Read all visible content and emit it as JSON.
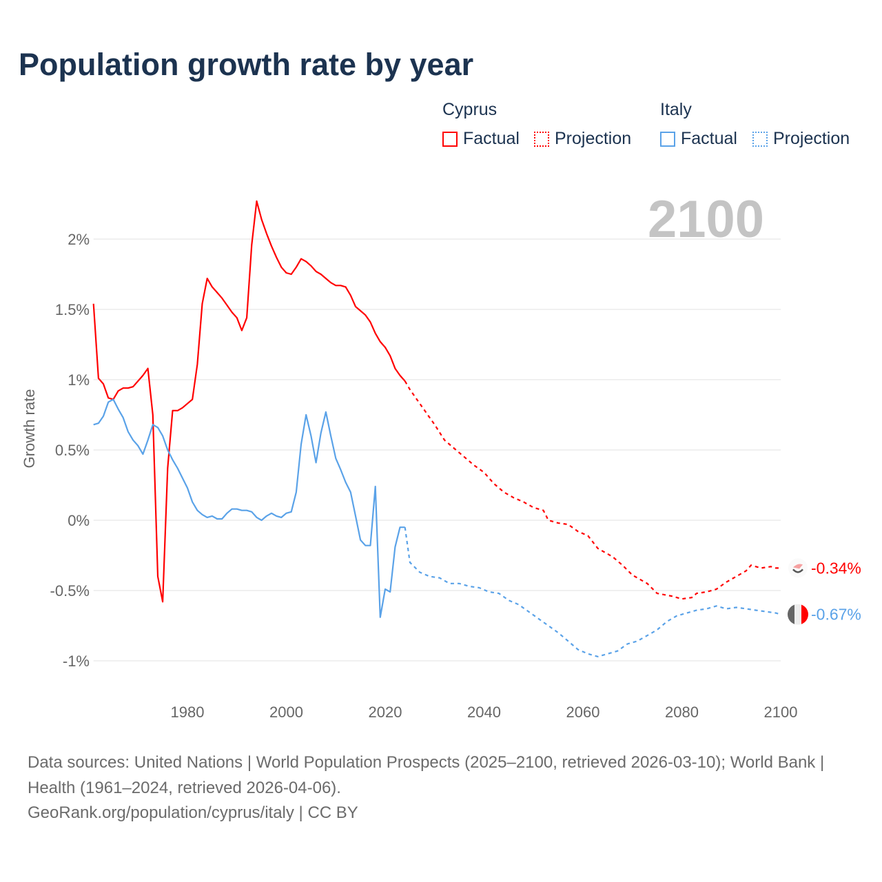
{
  "title": "Population growth rate by year",
  "current_year": "2100",
  "legend": {
    "groups": [
      {
        "name": "Cyprus",
        "color": "#ff0000",
        "factual": "Factual",
        "projection": "Projection"
      },
      {
        "name": "Italy",
        "color": "#5aa2e8",
        "factual": "Factual",
        "projection": "Projection"
      }
    ]
  },
  "footer": {
    "sources": "Data sources: United Nations | World Population Prospects (2025–2100, retrieved 2026-03-10); World Bank | Health (1961–2024, retrieved 2026-04-06).",
    "credit": "GeoRank.org/population/cyprus/italy | CC BY"
  },
  "chart_data": {
    "type": "line",
    "title": "Population growth rate by year",
    "xlabel": "",
    "ylabel": "Growth rate",
    "xlim": [
      1961,
      2100
    ],
    "ylim": [
      -1.2,
      2.35
    ],
    "x_ticks": [
      1980,
      2000,
      2020,
      2040,
      2060,
      2080,
      2100
    ],
    "x_tick_labels": [
      "1980",
      "2000",
      "2020",
      "2040",
      "2060",
      "2080",
      "2100"
    ],
    "y_ticks": [
      2,
      1.5,
      1,
      0.5,
      0,
      -0.5,
      -1
    ],
    "y_tick_labels": [
      "2%",
      "1.5%",
      "1%",
      "0.5%",
      "0%",
      "-0.5%",
      "-1%"
    ],
    "grid": true,
    "legend_position": "top-right",
    "series": [
      {
        "name": "Cyprus",
        "color": "#ff0000",
        "end_label": "-0.34%",
        "factual": [
          [
            1961,
            1.54
          ],
          [
            1962,
            1.01
          ],
          [
            1963,
            0.97
          ],
          [
            1964,
            0.87
          ],
          [
            1965,
            0.86
          ],
          [
            1966,
            0.92
          ],
          [
            1967,
            0.94
          ],
          [
            1968,
            0.94
          ],
          [
            1969,
            0.95
          ],
          [
            1970,
            0.99
          ],
          [
            1971,
            1.03
          ],
          [
            1972,
            1.08
          ],
          [
            1973,
            0.75
          ],
          [
            1974,
            -0.4
          ],
          [
            1975,
            -0.58
          ],
          [
            1976,
            0.37
          ],
          [
            1977,
            0.78
          ],
          [
            1978,
            0.78
          ],
          [
            1979,
            0.8
          ],
          [
            1980,
            0.83
          ],
          [
            1981,
            0.86
          ],
          [
            1982,
            1.11
          ],
          [
            1983,
            1.54
          ],
          [
            1984,
            1.72
          ],
          [
            1985,
            1.66
          ],
          [
            1986,
            1.62
          ],
          [
            1987,
            1.58
          ],
          [
            1988,
            1.53
          ],
          [
            1989,
            1.48
          ],
          [
            1990,
            1.44
          ],
          [
            1991,
            1.35
          ],
          [
            1992,
            1.44
          ],
          [
            1993,
            1.96
          ],
          [
            1994,
            2.27
          ],
          [
            1995,
            2.14
          ],
          [
            1996,
            2.04
          ],
          [
            1997,
            1.95
          ],
          [
            1998,
            1.87
          ],
          [
            1999,
            1.8
          ],
          [
            2000,
            1.76
          ],
          [
            2001,
            1.75
          ],
          [
            2002,
            1.8
          ],
          [
            2003,
            1.86
          ],
          [
            2004,
            1.84
          ],
          [
            2005,
            1.81
          ],
          [
            2006,
            1.77
          ],
          [
            2007,
            1.75
          ],
          [
            2008,
            1.72
          ],
          [
            2009,
            1.69
          ],
          [
            2010,
            1.67
          ],
          [
            2011,
            1.67
          ],
          [
            2012,
            1.66
          ],
          [
            2013,
            1.6
          ],
          [
            2014,
            1.52
          ],
          [
            2015,
            1.49
          ],
          [
            2016,
            1.46
          ],
          [
            2017,
            1.41
          ],
          [
            2018,
            1.33
          ],
          [
            2019,
            1.27
          ],
          [
            2020,
            1.23
          ],
          [
            2021,
            1.17
          ],
          [
            2022,
            1.08
          ],
          [
            2023,
            1.03
          ],
          [
            2024,
            0.99
          ]
        ],
        "projection": [
          [
            2024,
            0.99
          ],
          [
            2025,
            0.93
          ],
          [
            2027,
            0.83
          ],
          [
            2030,
            0.68
          ],
          [
            2032,
            0.57
          ],
          [
            2035,
            0.48
          ],
          [
            2038,
            0.39
          ],
          [
            2040,
            0.34
          ],
          [
            2042,
            0.26
          ],
          [
            2044,
            0.2
          ],
          [
            2046,
            0.16
          ],
          [
            2048,
            0.13
          ],
          [
            2050,
            0.09
          ],
          [
            2052,
            0.07
          ],
          [
            2053,
            0.0
          ],
          [
            2055,
            -0.02
          ],
          [
            2057,
            -0.03
          ],
          [
            2059,
            -0.08
          ],
          [
            2061,
            -0.11
          ],
          [
            2063,
            -0.2
          ],
          [
            2066,
            -0.26
          ],
          [
            2068,
            -0.32
          ],
          [
            2070,
            -0.39
          ],
          [
            2073,
            -0.45
          ],
          [
            2075,
            -0.52
          ],
          [
            2078,
            -0.54
          ],
          [
            2080,
            -0.56
          ],
          [
            2082,
            -0.55
          ],
          [
            2083,
            -0.52
          ],
          [
            2085,
            -0.51
          ],
          [
            2087,
            -0.49
          ],
          [
            2089,
            -0.44
          ],
          [
            2091,
            -0.4
          ],
          [
            2093,
            -0.36
          ],
          [
            2094,
            -0.32
          ],
          [
            2096,
            -0.34
          ],
          [
            2098,
            -0.33
          ],
          [
            2099,
            -0.34
          ],
          [
            2100,
            -0.34
          ]
        ]
      },
      {
        "name": "Italy",
        "color": "#5aa2e8",
        "end_label": "-0.67%",
        "factual": [
          [
            1961,
            0.68
          ],
          [
            1962,
            0.69
          ],
          [
            1963,
            0.74
          ],
          [
            1964,
            0.84
          ],
          [
            1965,
            0.86
          ],
          [
            1966,
            0.79
          ],
          [
            1967,
            0.73
          ],
          [
            1968,
            0.63
          ],
          [
            1969,
            0.57
          ],
          [
            1970,
            0.53
          ],
          [
            1971,
            0.47
          ],
          [
            1972,
            0.57
          ],
          [
            1973,
            0.68
          ],
          [
            1974,
            0.66
          ],
          [
            1975,
            0.6
          ],
          [
            1976,
            0.5
          ],
          [
            1977,
            0.43
          ],
          [
            1978,
            0.37
          ],
          [
            1979,
            0.3
          ],
          [
            1980,
            0.23
          ],
          [
            1981,
            0.13
          ],
          [
            1982,
            0.07
          ],
          [
            1983,
            0.04
          ],
          [
            1984,
            0.02
          ],
          [
            1985,
            0.03
          ],
          [
            1986,
            0.01
          ],
          [
            1987,
            0.01
          ],
          [
            1988,
            0.05
          ],
          [
            1989,
            0.08
          ],
          [
            1990,
            0.08
          ],
          [
            1991,
            0.07
          ],
          [
            1992,
            0.07
          ],
          [
            1993,
            0.06
          ],
          [
            1994,
            0.02
          ],
          [
            1995,
            0.0
          ],
          [
            1996,
            0.03
          ],
          [
            1997,
            0.05
          ],
          [
            1998,
            0.03
          ],
          [
            1999,
            0.02
          ],
          [
            2000,
            0.05
          ],
          [
            2001,
            0.06
          ],
          [
            2002,
            0.2
          ],
          [
            2003,
            0.54
          ],
          [
            2004,
            0.75
          ],
          [
            2005,
            0.6
          ],
          [
            2006,
            0.41
          ],
          [
            2007,
            0.62
          ],
          [
            2008,
            0.77
          ],
          [
            2009,
            0.6
          ],
          [
            2010,
            0.44
          ],
          [
            2011,
            0.36
          ],
          [
            2012,
            0.27
          ],
          [
            2013,
            0.2
          ],
          [
            2014,
            0.03
          ],
          [
            2015,
            -0.14
          ],
          [
            2016,
            -0.18
          ],
          [
            2017,
            -0.18
          ],
          [
            2018,
            0.24
          ],
          [
            2019,
            -0.69
          ],
          [
            2020,
            -0.49
          ],
          [
            2021,
            -0.51
          ],
          [
            2022,
            -0.19
          ],
          [
            2023,
            -0.05
          ],
          [
            2024,
            -0.05
          ]
        ],
        "projection": [
          [
            2024,
            -0.05
          ],
          [
            2025,
            -0.3
          ],
          [
            2027,
            -0.37
          ],
          [
            2029,
            -0.4
          ],
          [
            2031,
            -0.41
          ],
          [
            2033,
            -0.45
          ],
          [
            2035,
            -0.45
          ],
          [
            2037,
            -0.47
          ],
          [
            2039,
            -0.48
          ],
          [
            2041,
            -0.51
          ],
          [
            2043,
            -0.52
          ],
          [
            2045,
            -0.57
          ],
          [
            2047,
            -0.6
          ],
          [
            2049,
            -0.65
          ],
          [
            2051,
            -0.7
          ],
          [
            2053,
            -0.75
          ],
          [
            2055,
            -0.8
          ],
          [
            2057,
            -0.86
          ],
          [
            2059,
            -0.92
          ],
          [
            2061,
            -0.95
          ],
          [
            2063,
            -0.97
          ],
          [
            2065,
            -0.95
          ],
          [
            2067,
            -0.93
          ],
          [
            2069,
            -0.88
          ],
          [
            2071,
            -0.86
          ],
          [
            2073,
            -0.82
          ],
          [
            2075,
            -0.78
          ],
          [
            2077,
            -0.72
          ],
          [
            2079,
            -0.68
          ],
          [
            2081,
            -0.66
          ],
          [
            2083,
            -0.64
          ],
          [
            2085,
            -0.63
          ],
          [
            2087,
            -0.61
          ],
          [
            2089,
            -0.63
          ],
          [
            2091,
            -0.62
          ],
          [
            2093,
            -0.63
          ],
          [
            2095,
            -0.64
          ],
          [
            2097,
            -0.65
          ],
          [
            2099,
            -0.66
          ],
          [
            2100,
            -0.67
          ]
        ]
      }
    ]
  }
}
